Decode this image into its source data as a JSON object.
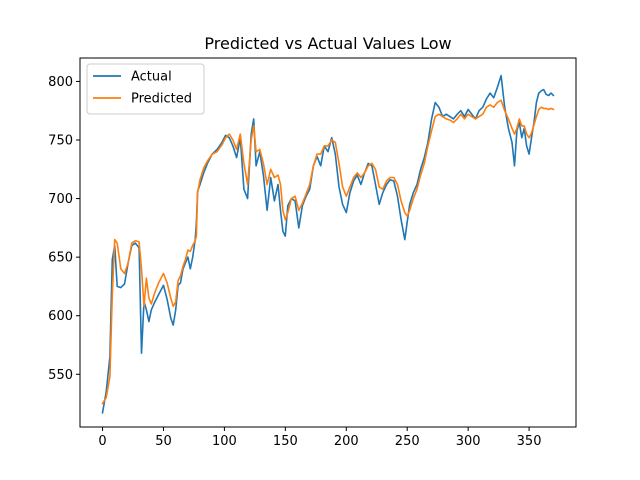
{
  "chart_data": {
    "type": "line",
    "title": "Predicted vs Actual Values Low",
    "xlabel": "",
    "ylabel": "",
    "xlim": [
      -18.5,
      388.5
    ],
    "ylim": [
      505,
      820
    ],
    "xticks": [
      0,
      50,
      100,
      150,
      200,
      250,
      300,
      350
    ],
    "yticks": [
      550,
      600,
      650,
      700,
      750,
      800
    ],
    "grid": false,
    "legend": "top-left",
    "series": [
      {
        "name": "Actual",
        "color": "#1f77b4",
        "x": [
          0,
          3,
          6,
          8,
          10,
          12,
          15,
          18,
          21,
          24,
          27,
          30,
          32,
          34,
          36,
          38,
          40,
          43,
          46,
          50,
          53,
          56,
          58,
          60,
          62,
          64,
          66,
          68,
          70,
          72,
          74,
          76,
          77,
          78,
          80,
          83,
          86,
          90,
          94,
          98,
          101,
          104,
          107,
          110,
          113,
          116,
          119,
          122,
          124,
          126,
          129,
          132,
          135,
          138,
          141,
          144,
          146,
          148,
          150,
          152,
          155,
          158,
          161,
          164,
          167,
          170,
          173,
          176,
          179,
          182,
          185,
          188,
          191,
          194,
          197,
          200,
          203,
          206,
          209,
          212,
          215,
          218,
          221,
          224,
          227,
          230,
          233,
          236,
          239,
          242,
          245,
          248,
          250,
          252,
          255,
          258,
          261,
          264,
          267,
          270,
          273,
          276,
          279,
          282,
          285,
          288,
          291,
          294,
          297,
          300,
          303,
          306,
          309,
          312,
          315,
          318,
          321,
          324,
          327,
          330,
          333,
          336,
          338,
          340,
          342,
          344,
          346,
          348,
          350,
          352,
          354,
          356,
          358,
          360,
          362,
          364,
          366,
          368,
          370
        ],
        "values": [
          517,
          535,
          565,
          648,
          660,
          625,
          624,
          627,
          645,
          660,
          662,
          658,
          568,
          612,
          605,
          595,
          605,
          612,
          618,
          626,
          614,
          598,
          592,
          605,
          626,
          628,
          640,
          645,
          650,
          640,
          650,
          665,
          680,
          706,
          712,
          722,
          730,
          738,
          742,
          748,
          754,
          752,
          745,
          735,
          752,
          708,
          700,
          755,
          768,
          728,
          740,
          720,
          690,
          718,
          698,
          712,
          690,
          672,
          668,
          694,
          700,
          698,
          675,
          694,
          702,
          708,
          728,
          736,
          728,
          745,
          740,
          752,
          738,
          710,
          695,
          688,
          705,
          715,
          720,
          712,
          722,
          730,
          728,
          712,
          695,
          705,
          712,
          716,
          715,
          702,
          682,
          665,
          680,
          695,
          705,
          712,
          725,
          735,
          748,
          768,
          782,
          778,
          770,
          772,
          770,
          768,
          772,
          775,
          770,
          776,
          772,
          768,
          775,
          778,
          785,
          790,
          786,
          795,
          805,
          778,
          760,
          748,
          728,
          758,
          765,
          752,
          760,
          745,
          738,
          752,
          765,
          782,
          790,
          792,
          793,
          789,
          788,
          790,
          788
        ]
      },
      {
        "name": "Predicted",
        "color": "#ff7f0e",
        "x": [
          0,
          3,
          6,
          8,
          10,
          12,
          15,
          18,
          21,
          24,
          27,
          30,
          32,
          34,
          36,
          38,
          40,
          43,
          46,
          50,
          53,
          56,
          58,
          60,
          62,
          64,
          66,
          68,
          70,
          72,
          74,
          76,
          77,
          78,
          80,
          83,
          86,
          90,
          94,
          98,
          101,
          104,
          107,
          110,
          113,
          116,
          119,
          122,
          124,
          126,
          129,
          132,
          135,
          138,
          141,
          144,
          146,
          148,
          150,
          152,
          155,
          158,
          161,
          164,
          167,
          170,
          173,
          176,
          179,
          182,
          185,
          188,
          191,
          194,
          197,
          200,
          203,
          206,
          209,
          212,
          215,
          218,
          221,
          224,
          227,
          230,
          233,
          236,
          239,
          242,
          245,
          248,
          250,
          252,
          255,
          258,
          261,
          264,
          267,
          270,
          273,
          276,
          279,
          282,
          285,
          288,
          291,
          294,
          297,
          300,
          303,
          306,
          309,
          312,
          315,
          318,
          321,
          324,
          327,
          330,
          333,
          336,
          338,
          340,
          342,
          344,
          346,
          348,
          350,
          352,
          354,
          356,
          358,
          360,
          362,
          364,
          366,
          368,
          370
        ],
        "values": [
          525,
          530,
          548,
          618,
          665,
          662,
          640,
          636,
          645,
          662,
          664,
          663,
          640,
          608,
          632,
          615,
          610,
          620,
          628,
          636,
          628,
          615,
          608,
          612,
          630,
          634,
          642,
          648,
          656,
          655,
          660,
          664,
          668,
          705,
          716,
          726,
          732,
          738,
          740,
          746,
          752,
          755,
          750,
          742,
          755,
          730,
          712,
          750,
          762,
          740,
          742,
          730,
          712,
          725,
          718,
          720,
          712,
          690,
          682,
          688,
          700,
          702,
          690,
          696,
          704,
          712,
          728,
          738,
          738,
          745,
          745,
          750,
          748,
          730,
          710,
          702,
          710,
          718,
          722,
          718,
          722,
          728,
          730,
          725,
          710,
          708,
          715,
          718,
          718,
          712,
          698,
          688,
          685,
          690,
          700,
          708,
          720,
          730,
          745,
          758,
          770,
          772,
          770,
          768,
          767,
          765,
          768,
          772,
          768,
          772,
          770,
          768,
          770,
          772,
          778,
          780,
          778,
          782,
          784,
          775,
          768,
          760,
          755,
          760,
          768,
          762,
          762,
          755,
          752,
          756,
          763,
          770,
          776,
          778,
          777,
          777,
          776,
          777,
          776
        ]
      }
    ]
  }
}
